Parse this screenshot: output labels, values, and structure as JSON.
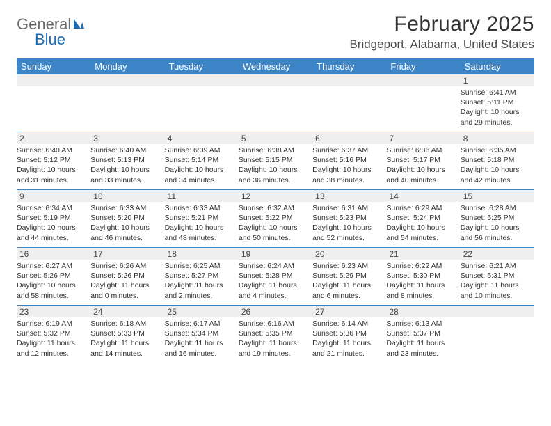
{
  "logo": {
    "text_left": "General",
    "text_right": "Blue"
  },
  "header": {
    "month_title": "February 2025",
    "location": "Bridgeport, Alabama, United States"
  },
  "colors": {
    "header_bar": "#3d85c6",
    "header_text": "#ffffff",
    "row_divider": "#3d85c6",
    "daynum_bg": "#efefef",
    "body_text": "#333333",
    "location_text": "#4a4a4a",
    "logo_gray": "#6a6a6a",
    "logo_blue": "#1f6bb0",
    "page_bg": "#ffffff"
  },
  "weekdays": [
    "Sunday",
    "Monday",
    "Tuesday",
    "Wednesday",
    "Thursday",
    "Friday",
    "Saturday"
  ],
  "layout": {
    "first_weekday_index": 6,
    "days_in_month": 28,
    "columns": 7
  },
  "days": [
    {
      "n": 1,
      "sunrise": "6:41 AM",
      "sunset": "5:11 PM",
      "daylight": "10 hours and 29 minutes."
    },
    {
      "n": 2,
      "sunrise": "6:40 AM",
      "sunset": "5:12 PM",
      "daylight": "10 hours and 31 minutes."
    },
    {
      "n": 3,
      "sunrise": "6:40 AM",
      "sunset": "5:13 PM",
      "daylight": "10 hours and 33 minutes."
    },
    {
      "n": 4,
      "sunrise": "6:39 AM",
      "sunset": "5:14 PM",
      "daylight": "10 hours and 34 minutes."
    },
    {
      "n": 5,
      "sunrise": "6:38 AM",
      "sunset": "5:15 PM",
      "daylight": "10 hours and 36 minutes."
    },
    {
      "n": 6,
      "sunrise": "6:37 AM",
      "sunset": "5:16 PM",
      "daylight": "10 hours and 38 minutes."
    },
    {
      "n": 7,
      "sunrise": "6:36 AM",
      "sunset": "5:17 PM",
      "daylight": "10 hours and 40 minutes."
    },
    {
      "n": 8,
      "sunrise": "6:35 AM",
      "sunset": "5:18 PM",
      "daylight": "10 hours and 42 minutes."
    },
    {
      "n": 9,
      "sunrise": "6:34 AM",
      "sunset": "5:19 PM",
      "daylight": "10 hours and 44 minutes."
    },
    {
      "n": 10,
      "sunrise": "6:33 AM",
      "sunset": "5:20 PM",
      "daylight": "10 hours and 46 minutes."
    },
    {
      "n": 11,
      "sunrise": "6:33 AM",
      "sunset": "5:21 PM",
      "daylight": "10 hours and 48 minutes."
    },
    {
      "n": 12,
      "sunrise": "6:32 AM",
      "sunset": "5:22 PM",
      "daylight": "10 hours and 50 minutes."
    },
    {
      "n": 13,
      "sunrise": "6:31 AM",
      "sunset": "5:23 PM",
      "daylight": "10 hours and 52 minutes."
    },
    {
      "n": 14,
      "sunrise": "6:29 AM",
      "sunset": "5:24 PM",
      "daylight": "10 hours and 54 minutes."
    },
    {
      "n": 15,
      "sunrise": "6:28 AM",
      "sunset": "5:25 PM",
      "daylight": "10 hours and 56 minutes."
    },
    {
      "n": 16,
      "sunrise": "6:27 AM",
      "sunset": "5:26 PM",
      "daylight": "10 hours and 58 minutes."
    },
    {
      "n": 17,
      "sunrise": "6:26 AM",
      "sunset": "5:26 PM",
      "daylight": "11 hours and 0 minutes."
    },
    {
      "n": 18,
      "sunrise": "6:25 AM",
      "sunset": "5:27 PM",
      "daylight": "11 hours and 2 minutes."
    },
    {
      "n": 19,
      "sunrise": "6:24 AM",
      "sunset": "5:28 PM",
      "daylight": "11 hours and 4 minutes."
    },
    {
      "n": 20,
      "sunrise": "6:23 AM",
      "sunset": "5:29 PM",
      "daylight": "11 hours and 6 minutes."
    },
    {
      "n": 21,
      "sunrise": "6:22 AM",
      "sunset": "5:30 PM",
      "daylight": "11 hours and 8 minutes."
    },
    {
      "n": 22,
      "sunrise": "6:21 AM",
      "sunset": "5:31 PM",
      "daylight": "11 hours and 10 minutes."
    },
    {
      "n": 23,
      "sunrise": "6:19 AM",
      "sunset": "5:32 PM",
      "daylight": "11 hours and 12 minutes."
    },
    {
      "n": 24,
      "sunrise": "6:18 AM",
      "sunset": "5:33 PM",
      "daylight": "11 hours and 14 minutes."
    },
    {
      "n": 25,
      "sunrise": "6:17 AM",
      "sunset": "5:34 PM",
      "daylight": "11 hours and 16 minutes."
    },
    {
      "n": 26,
      "sunrise": "6:16 AM",
      "sunset": "5:35 PM",
      "daylight": "11 hours and 19 minutes."
    },
    {
      "n": 27,
      "sunrise": "6:14 AM",
      "sunset": "5:36 PM",
      "daylight": "11 hours and 21 minutes."
    },
    {
      "n": 28,
      "sunrise": "6:13 AM",
      "sunset": "5:37 PM",
      "daylight": "11 hours and 23 minutes."
    }
  ],
  "labels": {
    "sunrise_prefix": "Sunrise: ",
    "sunset_prefix": "Sunset: ",
    "daylight_prefix": "Daylight: "
  }
}
